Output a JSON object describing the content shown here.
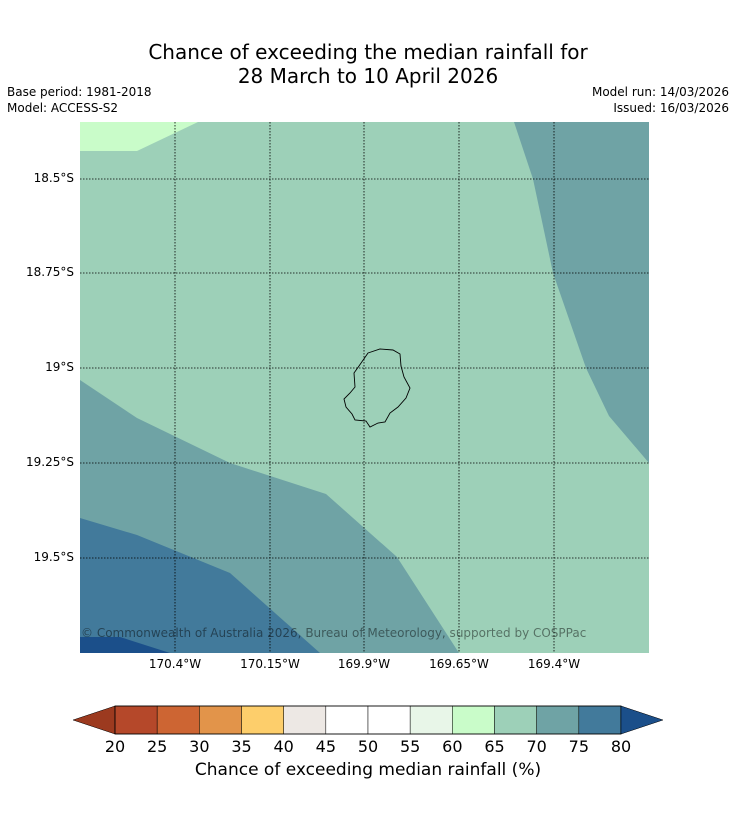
{
  "title_line1": "Chance of exceeding the median rainfall for",
  "title_line2": "28 March to 10 April 2026",
  "base_period": "Base period: 1981-2018",
  "model": "Model: ACCESS-S2",
  "model_run": "Model run: 14/03/2026",
  "issued": "Issued: 16/03/2026",
  "latitude_labels": [
    "18.5°S",
    "18.75°S",
    "19°S",
    "19.25°S",
    "19.5°S"
  ],
  "longitude_labels": [
    "170.4°W",
    "170.15°W",
    "169.9°W",
    "169.65°W",
    "169.4°W"
  ],
  "copyright": "© Commonwealth of Australia 2026, Bureau of Meteorology, supported by COSPPac",
  "colorbar": {
    "title": "Chance of exceeding median rainfall (%)",
    "ticks": [
      "20",
      "25",
      "30",
      "35",
      "40",
      "45",
      "50",
      "55",
      "60",
      "65",
      "70",
      "75",
      "80"
    ],
    "colors": [
      "#9c3a1f",
      "#b5482a",
      "#cd6533",
      "#e2944a",
      "#fdce6b",
      "#ede8e4",
      "#ffffff",
      "#ffffff",
      "#e8f6e8",
      "#c9fcc9",
      "#9dd0b8",
      "#6fa3a5",
      "#427a9b"
    ],
    "under_color": "#9c3a1f",
    "over_color": "#1b4f8a"
  },
  "map_colors": {
    "p65_70": "#9dd0b8",
    "p60_65": "#c9fcc9",
    "p70_75": "#6fa3a5",
    "p75_80": "#427a9b",
    "p80_plus": "#1b4f8a"
  }
}
